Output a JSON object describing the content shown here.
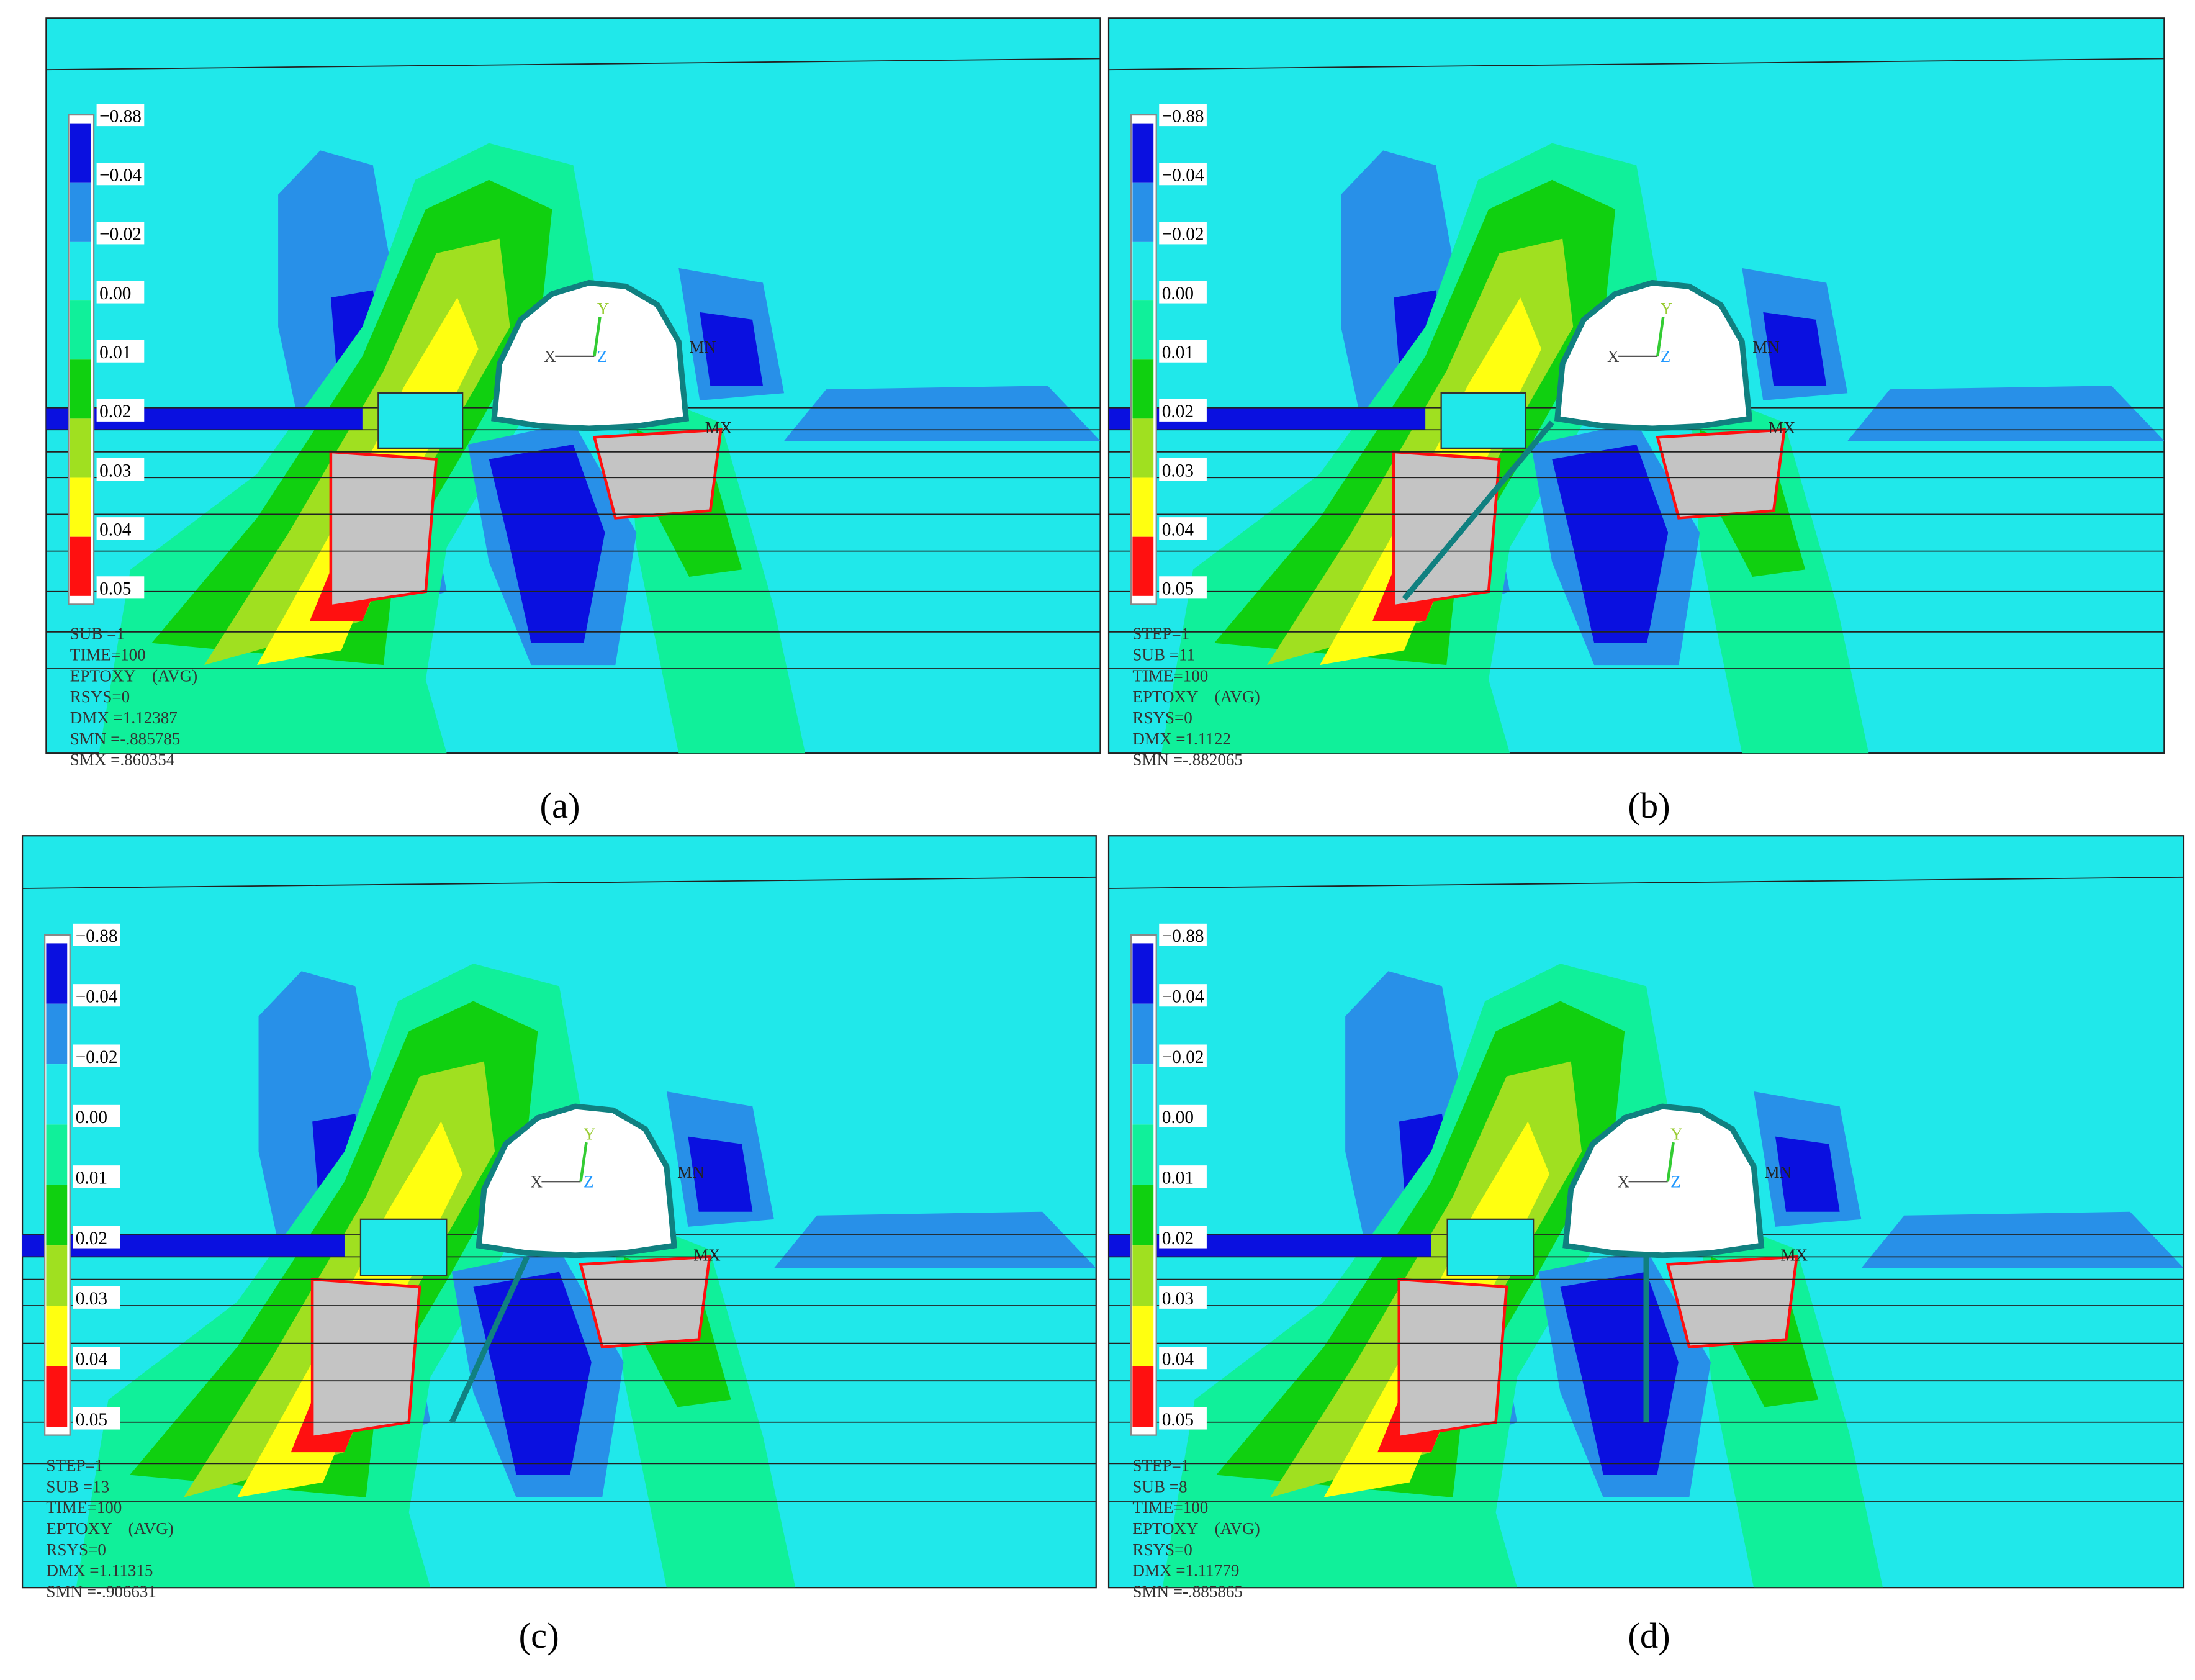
{
  "panels": [
    {
      "caption": "(a)",
      "legend": [
        "−0.88",
        "−0.04",
        "−0.02",
        "0.00",
        "0.01",
        "0.02",
        "0.03",
        "0.04",
        "0.05"
      ],
      "info": [
        "SUB =1",
        "TIME=100",
        "EPTOXY    (AVG)",
        "RSYS=0",
        "DMX =1.12387",
        "SMN =-.885785",
        "SMX =.860354"
      ],
      "triad": {
        "x": "X",
        "y": "Y",
        "z": "Z"
      },
      "min_label": "MN",
      "max_label": "MX"
    },
    {
      "caption": "(b)",
      "legend": [
        "−0.88",
        "−0.04",
        "−0.02",
        "0.00",
        "0.01",
        "0.02",
        "0.03",
        "0.04",
        "0.05"
      ],
      "info": [
        "STEP=1",
        "SUB =11",
        "TIME=100",
        "EPTOXY    (AVG)",
        "RSYS=0",
        "DMX =1.1122",
        "SMN =-.882065"
      ],
      "triad": {
        "x": "X",
        "y": "Y",
        "z": "Z"
      },
      "min_label": "MN",
      "max_label": "MX"
    },
    {
      "caption": "(c)",
      "legend": [
        "−0.88",
        "−0.04",
        "−0.02",
        "0.00",
        "0.01",
        "0.02",
        "0.03",
        "0.04",
        "0.05"
      ],
      "info": [
        "STEP=1",
        "SUB =13",
        "TIME=100",
        "EPTOXY    (AVG)",
        "RSYS=0",
        "DMX =1.11315",
        "SMN =-.906631"
      ],
      "triad": {
        "x": "X",
        "y": "Y",
        "z": "Z"
      },
      "min_label": "MN",
      "max_label": "MX"
    },
    {
      "caption": "(d)",
      "legend": [
        "−0.88",
        "−0.04",
        "−0.02",
        "0.00",
        "0.01",
        "0.02",
        "0.03",
        "0.04",
        "0.05"
      ],
      "info": [
        "STEP=1",
        "SUB =8",
        "TIME=100",
        "EPTOXY    (AVG)",
        "RSYS=0",
        "DMX =1.11779",
        "SMN =-.885865"
      ],
      "triad": {
        "x": "X",
        "y": "Y",
        "z": "Z"
      },
      "min_label": "MN",
      "max_label": "MX"
    }
  ]
}
